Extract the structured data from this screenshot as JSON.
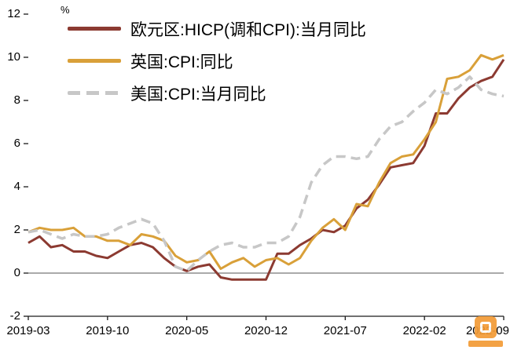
{
  "chart_data": {
    "type": "line",
    "title": "",
    "y_unit_label": "%",
    "ylim": [
      -2,
      12
    ],
    "yticks": [
      12,
      10,
      8,
      6,
      4,
      2,
      0,
      -2
    ],
    "x_tick_labels": [
      "2019-03",
      "2019-10",
      "2020-05",
      "2020-12",
      "2021-07",
      "2022-02",
      "2022-09"
    ],
    "x_tick_month_indices": [
      0,
      7,
      14,
      21,
      28,
      35,
      42
    ],
    "x_range": [
      "2019-03",
      "2022-09"
    ],
    "grid": false,
    "zero_line": true,
    "legend_position": "top-left",
    "series": [
      {
        "name": "欧元区:HICP(调和CPI):当月同比",
        "color": "#8C3A31",
        "style": "solid",
        "values": [
          1.4,
          1.7,
          1.2,
          1.3,
          1.0,
          1.0,
          0.8,
          0.7,
          1.0,
          1.3,
          1.4,
          1.2,
          0.7,
          0.3,
          0.1,
          0.3,
          0.4,
          -0.2,
          -0.3,
          -0.3,
          -0.3,
          -0.3,
          0.9,
          0.9,
          1.3,
          1.6,
          2.0,
          1.9,
          2.2,
          3.0,
          3.4,
          4.1,
          4.9,
          5.0,
          5.1,
          5.9,
          7.4,
          7.4,
          8.1,
          8.6,
          8.9,
          9.1,
          9.9
        ]
      },
      {
        "name": "英国:CPI:同比",
        "color": "#D9A039",
        "style": "solid",
        "values": [
          1.9,
          2.1,
          2.0,
          2.0,
          2.1,
          1.7,
          1.7,
          1.5,
          1.5,
          1.3,
          1.8,
          1.7,
          1.5,
          0.8,
          0.5,
          0.6,
          1.0,
          0.2,
          0.5,
          0.7,
          0.3,
          0.6,
          0.7,
          0.4,
          0.7,
          1.5,
          2.1,
          2.5,
          2.0,
          3.2,
          3.1,
          4.2,
          5.1,
          5.4,
          5.5,
          6.2,
          7.0,
          9.0,
          9.1,
          9.4,
          10.1,
          9.9,
          10.1
        ]
      },
      {
        "name": "美国:CPI:当月同比",
        "color": "#C7C7C7",
        "style": "dashed",
        "values": [
          1.9,
          2.0,
          1.8,
          1.6,
          1.8,
          1.7,
          1.7,
          1.8,
          2.1,
          2.3,
          2.5,
          2.3,
          1.5,
          0.3,
          0.1,
          0.6,
          1.0,
          1.3,
          1.4,
          1.2,
          1.2,
          1.4,
          1.4,
          1.7,
          2.6,
          4.2,
          5.0,
          5.4,
          5.4,
          5.3,
          5.4,
          6.2,
          6.8,
          7.0,
          7.5,
          7.9,
          8.5,
          8.3,
          8.6,
          9.1,
          8.5,
          8.3,
          8.2
        ]
      }
    ]
  },
  "watermark": {
    "color": "#F39B36"
  }
}
